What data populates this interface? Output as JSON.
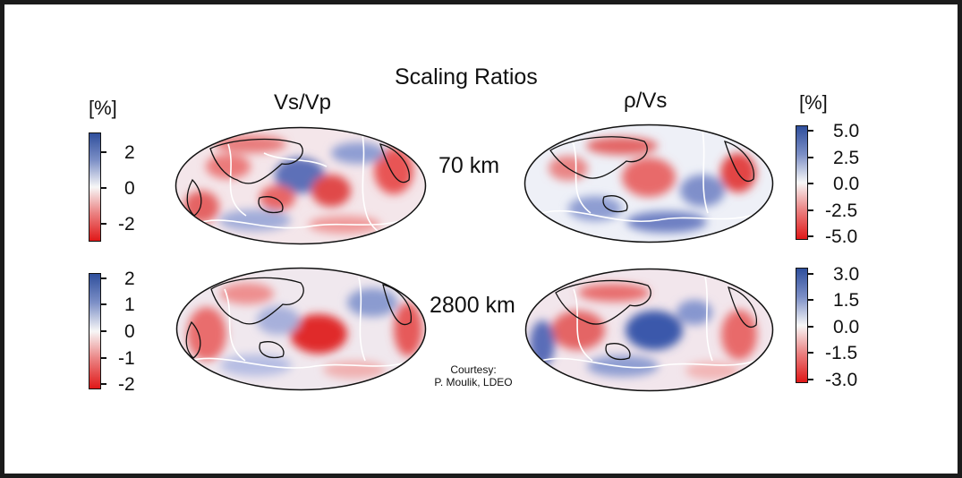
{
  "figure": {
    "title": "Scaling Ratios",
    "columns": [
      "Vs/Vp",
      "ρ/Vs"
    ],
    "unit_left": "[%]",
    "unit_right": "[%]",
    "depths": [
      "70 km",
      "2800 km"
    ],
    "credit_line1": "Courtesy:",
    "credit_line2": "P. Moulik, LDEO"
  },
  "colorbars": {
    "vsvp_70": [
      "2",
      "0",
      "-2"
    ],
    "vsvp_2800": [
      "2",
      "1",
      "0",
      "-1",
      "-2"
    ],
    "rhovs_70": [
      "5.0",
      "2.5",
      "0.0",
      "-2.5",
      "-5.0"
    ],
    "rhovs_2800": [
      "3.0",
      "1.5",
      "0.0",
      "-1.5",
      "-3.0"
    ]
  },
  "colors": {
    "positive": "#2f4f9c",
    "neutral": "#f7f7f7",
    "negative": "#e01818",
    "coastline": "#111111",
    "plate_boundary": "#ffffff"
  }
}
